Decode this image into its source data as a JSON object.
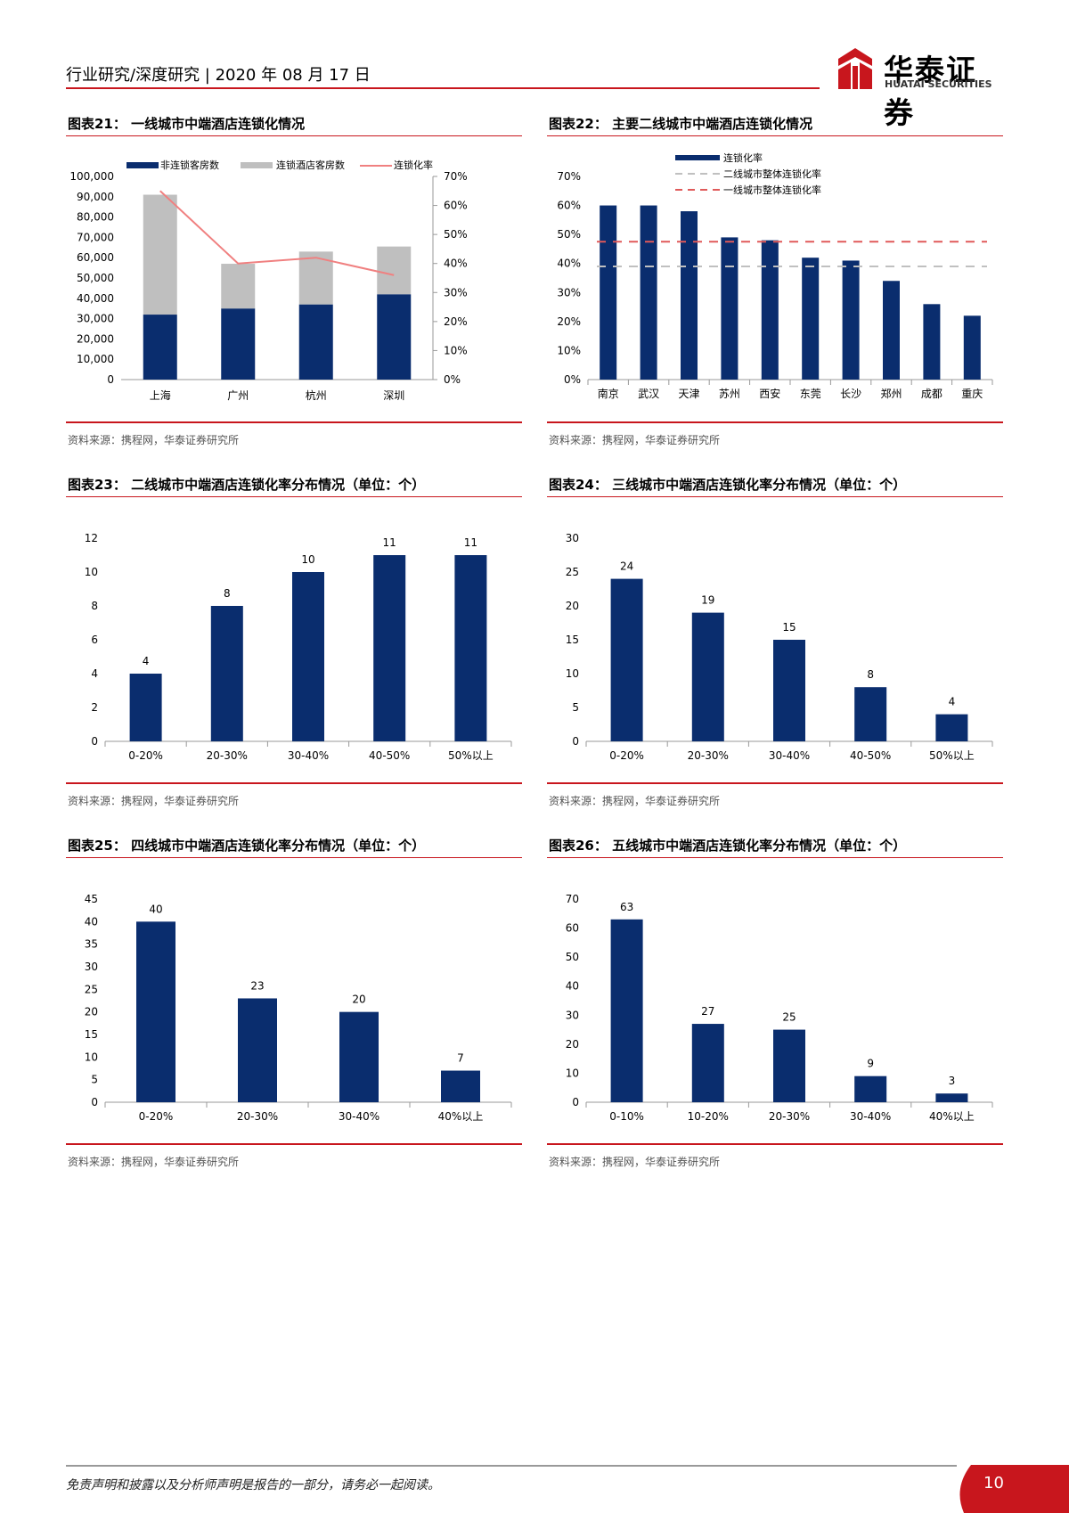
{
  "header": {
    "text": "行业研究/深度研究 | 2020 年 08 月 17 日",
    "logo_cn": "华泰证券",
    "logo_en": "HUATAI SECURITIES",
    "brand_color": "#c8161d"
  },
  "footer": {
    "disclaimer": "免责声明和披露以及分析师声明是报告的一部分，请务必一起阅读。",
    "page_number": "10"
  },
  "colors": {
    "navy": "#0a2d6e",
    "gray": "#bfbfbf",
    "line": "#f08080",
    "accent": "#c8161d"
  },
  "chart_data": [
    {
      "id": "c21",
      "type": "bar-stacked-line",
      "title": "图表21： 一线城市中端酒店连锁化情况",
      "source": "资料来源：携程网，华泰证券研究所",
      "categories": [
        "上海",
        "广州",
        "杭州",
        "深圳"
      ],
      "series": [
        {
          "name": "非连锁客房数",
          "values": [
            32000,
            35000,
            37000,
            42000
          ]
        },
        {
          "name": "连锁酒店客房数",
          "values": [
            59000,
            22000,
            26000,
            23500
          ]
        },
        {
          "name": "连锁化率",
          "values": [
            65,
            40,
            42,
            36
          ],
          "axis": "right"
        }
      ],
      "ylim": [
        0,
        100000
      ],
      "yticks": [
        "100,000",
        "90,000",
        "80,000",
        "70,000",
        "60,000",
        "50,000",
        "40,000",
        "30,000",
        "20,000",
        "10,000",
        "0"
      ],
      "y2lim": [
        0,
        70
      ],
      "y2ticks": [
        "70%",
        "60%",
        "50%",
        "40%",
        "30%",
        "20%",
        "10%",
        "0%"
      ]
    },
    {
      "id": "c22",
      "type": "bar",
      "title": "图表22： 主要二线城市中端酒店连锁化情况",
      "source": "资料来源：携程网，华泰证券研究所",
      "categories": [
        "南京",
        "武汉",
        "天津",
        "苏州",
        "西安",
        "东莞",
        "长沙",
        "郑州",
        "成都",
        "重庆"
      ],
      "values": [
        60,
        60,
        58,
        49,
        48,
        42,
        41,
        34,
        26,
        22
      ],
      "legend": [
        "连锁化率",
        "二线城市整体连锁化率",
        "一线城市整体连锁化率"
      ],
      "ref_lines": [
        39,
        47.5
      ],
      "ylim": [
        0,
        70
      ],
      "yticks": [
        "70%",
        "60%",
        "50%",
        "40%",
        "30%",
        "20%",
        "10%",
        "0%"
      ]
    },
    {
      "id": "c23",
      "type": "bar",
      "title": "图表23： 二线城市中端酒店连锁化率分布情况（单位：个）",
      "source": "资料来源：携程网，华泰证券研究所",
      "categories": [
        "0-20%",
        "20-30%",
        "30-40%",
        "40-50%",
        "50%以上"
      ],
      "values": [
        4,
        8,
        10,
        11,
        11
      ],
      "labels": [
        "4",
        "8",
        "10",
        "11",
        "11"
      ],
      "ylim": [
        0,
        12
      ],
      "yticks": [
        "12",
        "10",
        "8",
        "6",
        "4",
        "2",
        "0"
      ]
    },
    {
      "id": "c24",
      "type": "bar",
      "title": "图表24： 三线城市中端酒店连锁化率分布情况（单位：个）",
      "source": "资料来源：携程网，华泰证券研究所",
      "categories": [
        "0-20%",
        "20-30%",
        "30-40%",
        "40-50%",
        "50%以上"
      ],
      "values": [
        24,
        19,
        15,
        8,
        4
      ],
      "labels": [
        "24",
        "19",
        "15",
        "8",
        "4"
      ],
      "ylim": [
        0,
        30
      ],
      "yticks": [
        "30",
        "25",
        "20",
        "15",
        "10",
        "5",
        "0"
      ]
    },
    {
      "id": "c25",
      "type": "bar",
      "title": "图表25： 四线城市中端酒店连锁化率分布情况（单位：个）",
      "source": "资料来源：携程网，华泰证券研究所",
      "categories": [
        "0-20%",
        "20-30%",
        "30-40%",
        "40%以上"
      ],
      "values": [
        40,
        23,
        20,
        7
      ],
      "labels": [
        "40",
        "23",
        "20",
        "7"
      ],
      "ylim": [
        0,
        45
      ],
      "yticks": [
        "45",
        "40",
        "35",
        "30",
        "25",
        "20",
        "15",
        "10",
        "5",
        "0"
      ]
    },
    {
      "id": "c26",
      "type": "bar",
      "title": "图表26： 五线城市中端酒店连锁化率分布情况（单位：个）",
      "source": "资料来源：携程网，华泰证券研究所",
      "categories": [
        "0-10%",
        "10-20%",
        "20-30%",
        "30-40%",
        "40%以上"
      ],
      "values": [
        63,
        27,
        25,
        9,
        3
      ],
      "labels": [
        "63",
        "27",
        "25",
        "9",
        "3"
      ],
      "ylim": [
        0,
        70
      ],
      "yticks": [
        "70",
        "60",
        "50",
        "40",
        "30",
        "20",
        "10",
        "0"
      ]
    }
  ]
}
